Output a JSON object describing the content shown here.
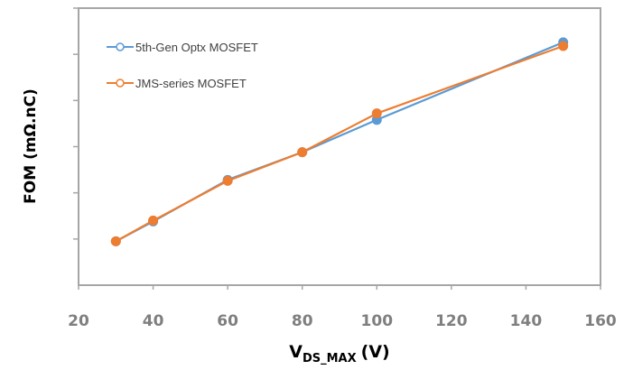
{
  "chart_data": {
    "type": "line",
    "title": "",
    "xlabel": {
      "main": "V",
      "sub": "DS_MAX",
      "unit": "(V)"
    },
    "ylabel": "FOM (mΩ.nC)",
    "x": [
      30,
      40,
      60,
      80,
      100,
      150
    ],
    "xlim": [
      20,
      160
    ],
    "ylim": [
      0,
      6
    ],
    "xticks": [
      20,
      40,
      60,
      80,
      100,
      120,
      140,
      160
    ],
    "ytick_labels_shown": false,
    "grid": false,
    "legend": {
      "placement": "top-left"
    },
    "series": [
      {
        "name": "5th-Gen Optx MOSFET",
        "color": "#5b9bd5",
        "values": [
          0.95,
          1.38,
          2.28,
          2.88,
          3.58,
          5.26
        ]
      },
      {
        "name": "JMS-series MOSFET",
        "color": "#ed7d31",
        "values": [
          0.95,
          1.4,
          2.26,
          2.88,
          3.72,
          5.18
        ]
      }
    ]
  }
}
